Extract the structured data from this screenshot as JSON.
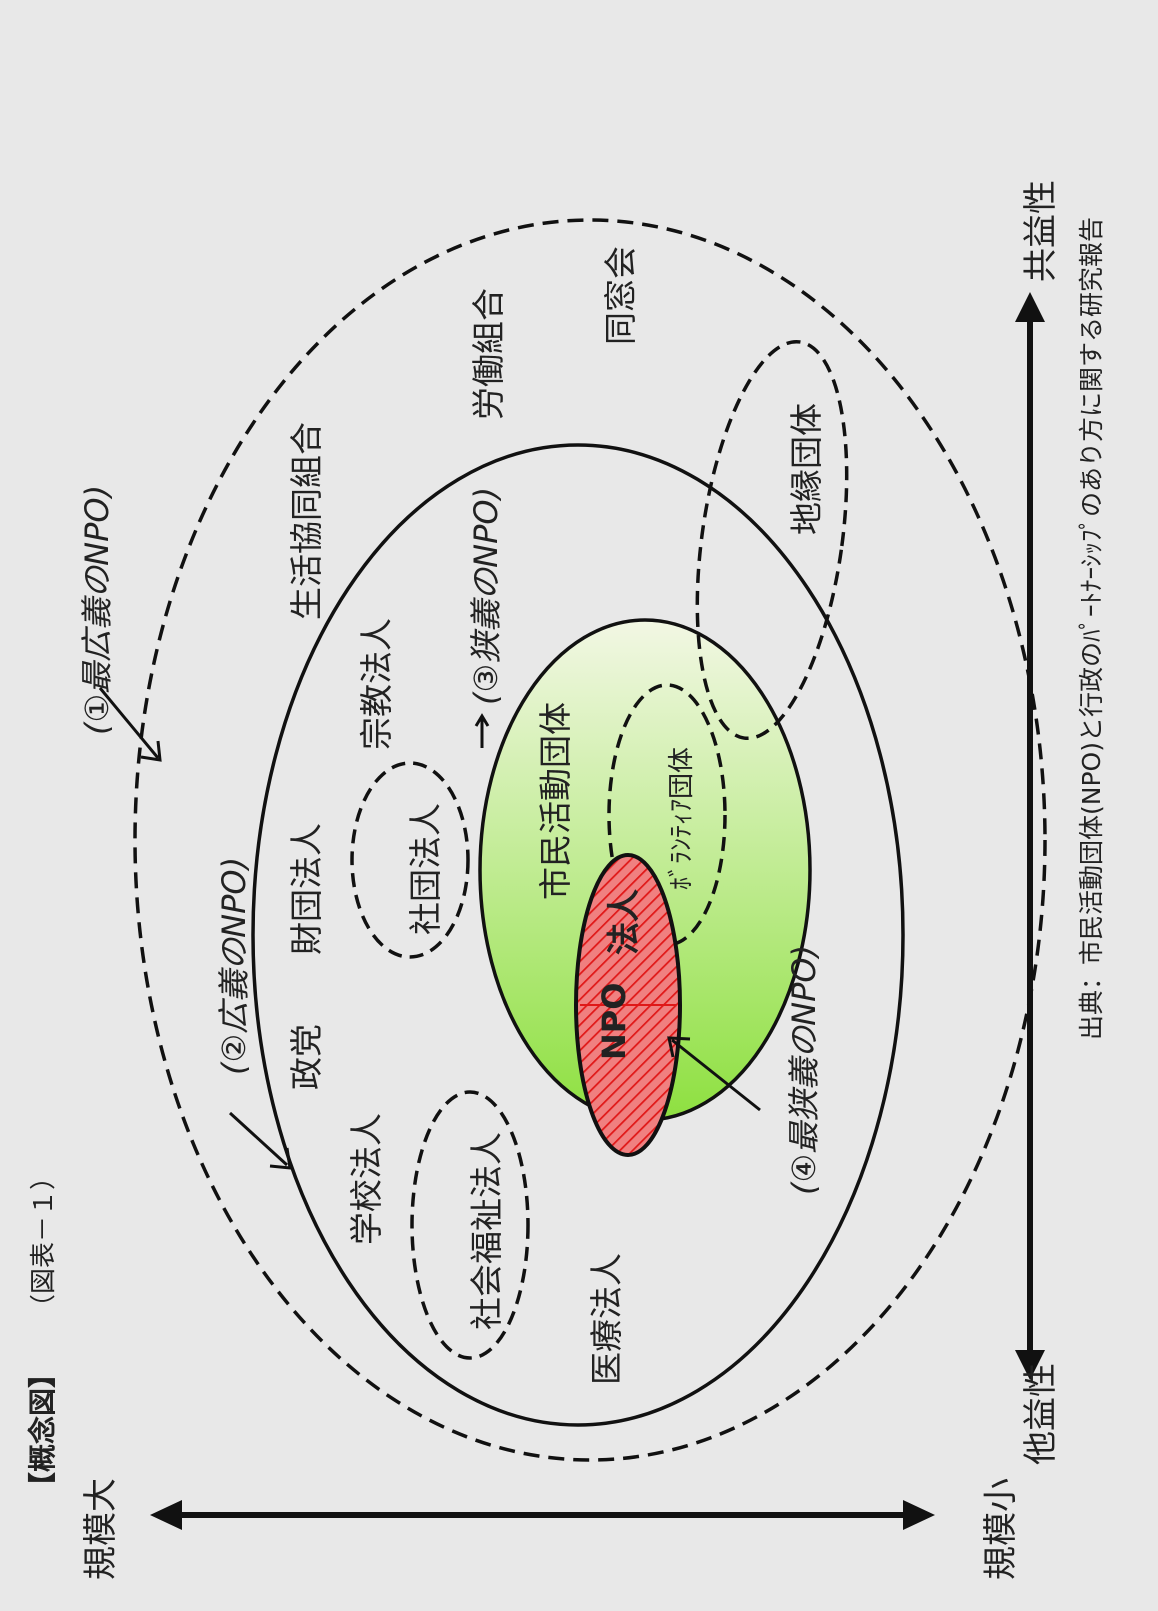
{
  "figure": {
    "title_bracket": "【概念図】",
    "title_ref": "（図表－１）",
    "source": "出典：市民活動団体(NPO)と行政のﾊﾟｰﾄﾅｰｼｯﾌﾟのあり方に関する研究報告"
  },
  "axes": {
    "scale_large": "規模大",
    "scale_small": "規模小",
    "public_benefit": "共益性",
    "other_benefit": "他益性"
  },
  "rings": {
    "broadest": "(①最広義のNPO)",
    "broad": "(②広義のNPO)",
    "narrow": "(③狭義のNPO)",
    "narrowest": "(④最狭義のNPO)"
  },
  "entities": {
    "labor_union": "労働組合",
    "alumni": "同窓会",
    "coop": "生活協同組合",
    "religious": "宗教法人",
    "foundation": "財団法人",
    "association": "社団法人",
    "political_party": "政党",
    "school": "学校法人",
    "social_welfare": "社会福祉法人",
    "medical": "医療法人",
    "community": "地縁団体",
    "citizen": "市民活動団体",
    "volunteer": "ﾎﾞﾗﾝﾃｨｱ団体",
    "npo_corp_npo": "NPO",
    "npo_corp_hojin": "法人"
  },
  "colors": {
    "background": "#e8e8e8",
    "green_top": "#f2f7e4",
    "green_bottom": "#8ee040",
    "red_hatch": "#e01818",
    "red_fill": "#f08080",
    "line": "#111111"
  }
}
